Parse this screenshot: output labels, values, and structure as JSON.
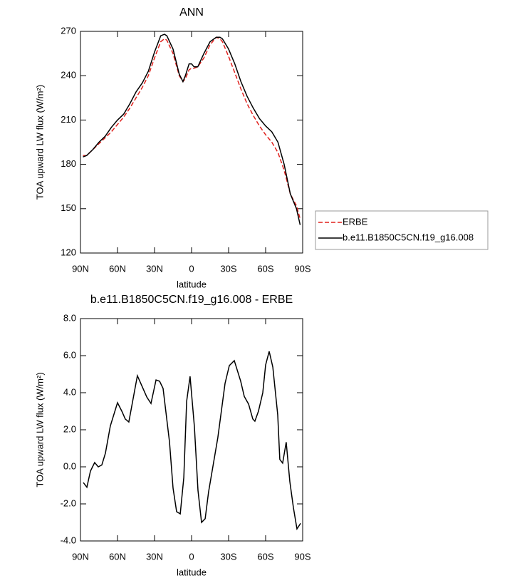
{
  "chart_data": [
    {
      "type": "line",
      "title": "ANN",
      "xlabel": "latitude",
      "ylabel": "TOA upward LW flux (W/m²)",
      "x": [
        88,
        85,
        80,
        75,
        70,
        65,
        60,
        55,
        50,
        45,
        40,
        35,
        30,
        25,
        22,
        20,
        15,
        10,
        7,
        5,
        2,
        0,
        -2,
        -5,
        -10,
        -15,
        -20,
        -23,
        -25,
        -30,
        -35,
        -40,
        -45,
        -50,
        -55,
        -60,
        -65,
        -70,
        -75,
        -80,
        -85,
        -88
      ],
      "series": [
        {
          "name": "ERBE",
          "color": "#e0201c",
          "linestyle": "dashed",
          "values": [
            186,
            186,
            190,
            194,
            198,
            202,
            207,
            212,
            218,
            225,
            232,
            240,
            252,
            263,
            265,
            264,
            255,
            240,
            236,
            238,
            244,
            245,
            245,
            246,
            252,
            261,
            266,
            265,
            263,
            253,
            242,
            231,
            221,
            213,
            206,
            200,
            195,
            188,
            176,
            160,
            152,
            143
          ]
        },
        {
          "name": "b.e11.B1850C5CN.f19_g16.008",
          "color": "#000000",
          "linestyle": "solid",
          "values": [
            185,
            186,
            190,
            195,
            199,
            205,
            210,
            214,
            221,
            229,
            235,
            243,
            256,
            267,
            268,
            267,
            258,
            241,
            236,
            240,
            248,
            248,
            246,
            246,
            255,
            263,
            266,
            266,
            265,
            258,
            248,
            236,
            226,
            218,
            211,
            206,
            202,
            195,
            180,
            160,
            150,
            139
          ]
        }
      ],
      "xlim": [
        90,
        -90
      ],
      "xticks": [
        {
          "value": 90,
          "label": "90N"
        },
        {
          "value": 60,
          "label": "60N"
        },
        {
          "value": 30,
          "label": "30N"
        },
        0,
        {
          "value": -30,
          "label": "30S"
        },
        {
          "value": -60,
          "label": "60S"
        },
        {
          "value": -90,
          "label": "90S"
        }
      ],
      "ylim": [
        120,
        270
      ],
      "yticks": [
        120,
        150,
        180,
        210,
        240,
        270
      ],
      "legend": "right"
    },
    {
      "type": "line",
      "title": "b.e11.B1850C5CN.f19_g16.008 - ERBE",
      "xlabel": "latitude",
      "ylabel": "TOA upward LW flux (W/m²)",
      "x": [
        87.7,
        84.8,
        81.9,
        78.5,
        75.6,
        72.7,
        69.8,
        65.8,
        60.0,
        56.5,
        53.7,
        50.8,
        43.9,
        39.8,
        36.3,
        32.9,
        28.8,
        25.9,
        23.1,
        17.9,
        15.0,
        12.1,
        9.2,
        6.3,
        4.0,
        1.2,
        -2.3,
        -5.2,
        -8.1,
        -11.0,
        -13.8,
        -21.3,
        -27.1,
        -30.6,
        -34.6,
        -39.8,
        -42.7,
        -46.2,
        -49.6,
        -51.3,
        -54.2,
        -57.7,
        -60.0,
        -62.9,
        -65.8,
        -69.8,
        -71.5,
        -73.8,
        -76.7,
        -79.6,
        -82.5,
        -85.4,
        -88.3
      ],
      "values": [
        -0.85,
        -1.1,
        -0.23,
        0.23,
        0.0,
        0.1,
        0.73,
        2.2,
        3.46,
        3.0,
        2.58,
        2.42,
        4.92,
        4.3,
        3.77,
        3.42,
        4.69,
        4.62,
        4.23,
        1.35,
        -1.15,
        -2.42,
        -2.54,
        -0.58,
        3.54,
        4.88,
        2.15,
        -1.27,
        -3.0,
        -2.8,
        -1.35,
        1.58,
        4.5,
        5.46,
        5.73,
        4.62,
        3.8,
        3.38,
        2.58,
        2.46,
        3.0,
        4.0,
        5.5,
        6.23,
        5.38,
        2.8,
        0.4,
        0.2,
        1.33,
        -0.8,
        -2.2,
        -3.35,
        -3.05
      ],
      "color": "#000000",
      "xlim": [
        90,
        -90
      ],
      "xticks": [
        {
          "value": 90,
          "label": "90N"
        },
        {
          "value": 60,
          "label": "60N"
        },
        {
          "value": 30,
          "label": "30N"
        },
        0,
        {
          "value": -30,
          "label": "30S"
        },
        {
          "value": -60,
          "label": "60S"
        },
        {
          "value": -90,
          "label": "90S"
        }
      ],
      "ylim": [
        -4,
        8
      ],
      "yticks": [
        {
          "value": -4,
          "label": "-4.0"
        },
        {
          "value": -2,
          "label": "-2.0"
        },
        {
          "value": 0,
          "label": "0.0"
        },
        {
          "value": 2,
          "label": "2.0"
        },
        {
          "value": 4,
          "label": "4.0"
        },
        {
          "value": 6,
          "label": "6.0"
        },
        {
          "value": 8,
          "label": "8.0"
        }
      ]
    }
  ]
}
